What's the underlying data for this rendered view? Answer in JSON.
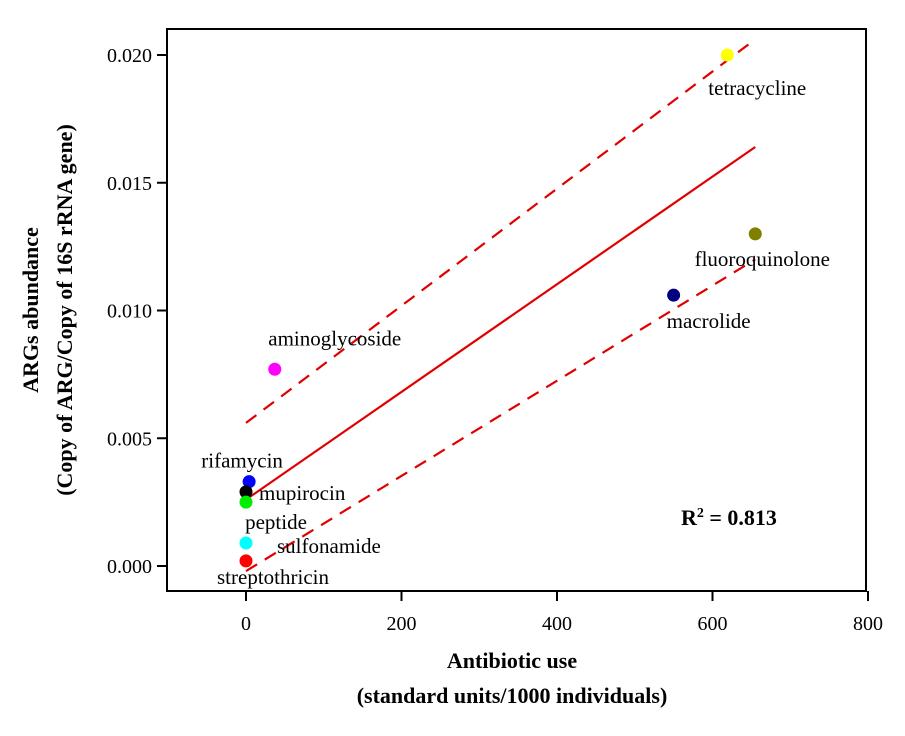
{
  "chart_data": {
    "type": "scatter",
    "title": "",
    "xlabel_line1": "Antibiotic use",
    "xlabel_line2": "(standard units/1000 individuals)",
    "ylabel_line1": "ARGs abundance",
    "ylabel_line2": "(Copy of ARG/Copy of 16S rRNA gene)",
    "xlim": [
      -100,
      800
    ],
    "ylim": [
      -0.001,
      0.0211
    ],
    "xticks": [
      0,
      200,
      400,
      600,
      800
    ],
    "xtick_labels": [
      "0",
      "200",
      "400",
      "600",
      "800"
    ],
    "yticks": [
      0,
      0.005,
      0.01,
      0.015,
      0.02
    ],
    "ytick_labels": [
      "0.000",
      "0.005",
      "0.010",
      "0.015",
      "0.020"
    ],
    "grid": false,
    "points": [
      {
        "name": "tetracycline",
        "x": 619,
        "y": 0.02,
        "color": "#ffff00"
      },
      {
        "name": "fluoroquinolone",
        "x": 655,
        "y": 0.013,
        "color": "#808000"
      },
      {
        "name": "macrolide",
        "x": 550,
        "y": 0.0106,
        "color": "#000080"
      },
      {
        "name": "aminoglycoside",
        "x": 37,
        "y": 0.0077,
        "color": "#ff00ff"
      },
      {
        "name": "rifamycin",
        "x": 4,
        "y": 0.0033,
        "color": "#0000ff"
      },
      {
        "name": "mupirocin",
        "x": 0,
        "y": 0.0029,
        "color": "#000000"
      },
      {
        "name": "peptide",
        "x": 0,
        "y": 0.0025,
        "color": "#00ee00"
      },
      {
        "name": "sulfonamide",
        "x": 0,
        "y": 0.0009,
        "color": "#00ffff"
      },
      {
        "name": "streptothricin",
        "x": 0,
        "y": 0.0002,
        "color": "#ff0000"
      }
    ],
    "fit_line": {
      "x": [
        0,
        655
      ],
      "y": [
        0.0026,
        0.0164
      ],
      "color": "#e00000"
    },
    "ci_upper": {
      "x": [
        0,
        650
      ],
      "y": [
        0.0056,
        0.0205
      ],
      "color": "#e00000"
    },
    "ci_lower": {
      "x": [
        0,
        655
      ],
      "y": [
        -0.0002,
        0.012
      ],
      "color": "#e00000"
    },
    "annotation": {
      "r_label": "R",
      "r_sup": "2",
      "r_value": " = 0.813"
    }
  }
}
